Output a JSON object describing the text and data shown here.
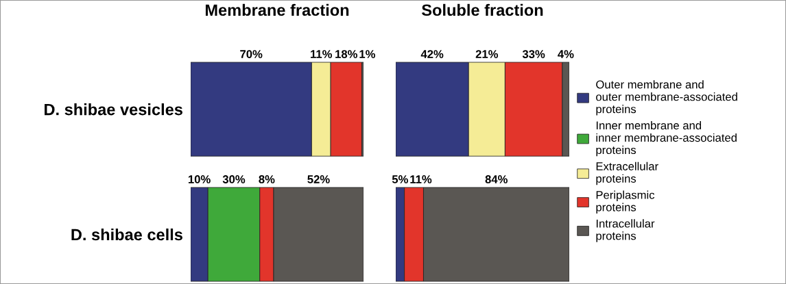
{
  "chart_data": [
    {
      "type": "bar",
      "orientation": "horizontal",
      "stacked": true,
      "title": "Membrane fraction",
      "categories": [
        "D. shibae vesicles",
        "D. shibae cells"
      ],
      "tick_labels": "y",
      "series": [
        {
          "color": "#333a80",
          "values": [
            70,
            10
          ],
          "value_labels": [
            "70%",
            "10%"
          ]
        },
        {
          "color": "#3fa93a",
          "values": [
            null,
            30
          ],
          "value_labels": [
            null,
            "30%"
          ]
        },
        {
          "color": "#f5ec96",
          "values": [
            11,
            null
          ],
          "value_labels": [
            "11%",
            null
          ]
        },
        {
          "color": "#e2352b",
          "values": [
            18,
            8
          ],
          "value_labels": [
            "18%",
            "8%"
          ]
        },
        {
          "color": "#5a5753",
          "values": [
            1,
            52
          ],
          "value_labels": [
            "1%",
            "52%"
          ]
        }
      ]
    },
    {
      "type": "bar",
      "orientation": "horizontal",
      "stacked": true,
      "title": "Soluble fraction",
      "categories": [
        null,
        null
      ],
      "tick_labels": false,
      "legend": "right",
      "series": [
        {
          "name": "Outer membrane and\nouter membrane-associated\nproteins",
          "color": "#333a80",
          "values": [
            42,
            5
          ],
          "value_labels": [
            "42%",
            "5%"
          ]
        },
        {
          "name": "Inner membrane and\ninner membrane-associated\nproteins",
          "color": "#3fa93a",
          "values": [
            null,
            null
          ],
          "value_labels": [
            null,
            null
          ]
        },
        {
          "name": "Extracellular\nproteins",
          "color": "#f5ec96",
          "values": [
            21,
            null
          ],
          "value_labels": [
            "21%",
            null
          ]
        },
        {
          "name": "Periplasmic\nproteins",
          "color": "#e2352b",
          "values": [
            33,
            11
          ],
          "value_labels": [
            "33%",
            "11%"
          ]
        },
        {
          "name": "Intracellular\nproteins",
          "color": "#5a5753",
          "values": [
            4,
            84
          ],
          "value_labels": [
            "4%",
            "84%"
          ]
        }
      ]
    }
  ]
}
